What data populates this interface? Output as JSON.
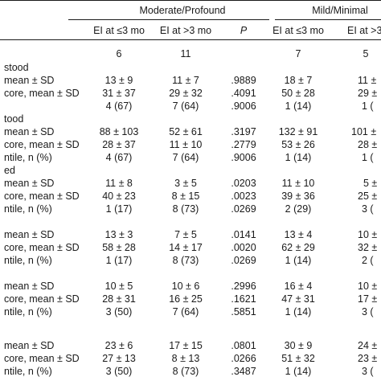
{
  "header": {
    "group1": "Moderate/Profound",
    "group2": "Mild/Minimal",
    "col_ei_le3": "EI at ≤3 mo",
    "col_ei_gt3": "EI at >3 mo",
    "col_p": "P",
    "col_ei_le3_b": "EI at ≤3 mo",
    "col_ei_gt3_b": "EI at >3"
  },
  "n_row": {
    "a": "6",
    "b": "11",
    "c": "7",
    "d": "5"
  },
  "sections": [
    {
      "title": "stood",
      "rows": [
        {
          "label": "mean ± SD",
          "a": "13 ± 9",
          "b": "11 ± 7",
          "p": ".9889",
          "c": "18 ± 7",
          "d": "11 ±"
        },
        {
          "label": "core, mean ± SD",
          "a": "31 ± 37",
          "b": "29 ± 32",
          "p": ".4091",
          "c": "50 ± 28",
          "d": "29 ±"
        },
        {
          "label": "",
          "a": "4 (67)",
          "b": "7 (64)",
          "p": ".9006",
          "c": "1 (14)",
          "d": "1 ("
        }
      ]
    },
    {
      "title": "tood",
      "rows": [
        {
          "label": "mean ± SD",
          "a": "88 ± 103",
          "b": "52 ± 61",
          "p": ".3197",
          "c": "132 ± 91",
          "d": "101 ±"
        },
        {
          "label": "core, mean ± SD",
          "a": "28 ± 37",
          "b": "11 ± 10",
          "p": ".2779",
          "c": "53 ± 26",
          "d": "28 ±"
        },
        {
          "label": "ntile, n (%)",
          "a": "4 (67)",
          "b": "7 (64)",
          "p": ".9006",
          "c": "1 (14)",
          "d": "1 ("
        }
      ]
    },
    {
      "title": "ed",
      "rows": [
        {
          "label": "mean ± SD",
          "a": "11 ± 8",
          "b": "3 ± 5",
          "p": ".0203",
          "c": "11 ± 10",
          "d": "5 ±"
        },
        {
          "label": "core, mean ± SD",
          "a": "40 ± 23",
          "b": "8 ± 15",
          "p": ".0023",
          "c": "39 ± 36",
          "d": "25 ±"
        },
        {
          "label": "ntile, n (%)",
          "a": "1 (17)",
          "b": "8 (73)",
          "p": ".0269",
          "c": "2 (29)",
          "d": "3 ("
        }
      ]
    },
    {
      "title": "",
      "rows": [
        {
          "label": "mean ± SD",
          "a": "13 ± 3",
          "b": "7 ± 5",
          "p": ".0141",
          "c": "13 ± 4",
          "d": "10 ±"
        },
        {
          "label": "core, mean ± SD",
          "a": "58 ± 28",
          "b": "14 ± 17",
          "p": ".0020",
          "c": "62 ± 29",
          "d": "32 ±"
        },
        {
          "label": "ntile, n (%)",
          "a": "1 (17)",
          "b": "8 (73)",
          "p": ".0269",
          "c": "1 (14)",
          "d": "2 ("
        }
      ]
    },
    {
      "title": "",
      "rows": [
        {
          "label": "mean ± SD",
          "a": "10 ± 5",
          "b": "10 ± 6",
          "p": ".2996",
          "c": "16 ± 4",
          "d": "10 ±"
        },
        {
          "label": "core, mean ± SD",
          "a": "28 ± 31",
          "b": "16 ± 25",
          "p": ".1621",
          "c": "47 ± 31",
          "d": "17 ±"
        },
        {
          "label": "ntile, n (%)",
          "a": "3 (50)",
          "b": "7 (64)",
          "p": ".5851",
          "c": "1 (14)",
          "d": "3 ("
        }
      ]
    },
    {
      "title": "",
      "rows": [
        {
          "label": "mean ± SD",
          "a": "23 ± 6",
          "b": "17 ± 15",
          "p": ".0801",
          "c": "30 ± 9",
          "d": "24 ±"
        },
        {
          "label": "core, mean ± SD",
          "a": "27 ± 13",
          "b": "8 ± 13",
          "p": ".0266",
          "c": "51 ± 32",
          "d": "23 ±"
        },
        {
          "label": "ntile, n (%)",
          "a": "3 (50)",
          "b": "8 (73)",
          "p": ".3487",
          "c": "1 (14)",
          "d": "3 ("
        }
      ]
    }
  ]
}
